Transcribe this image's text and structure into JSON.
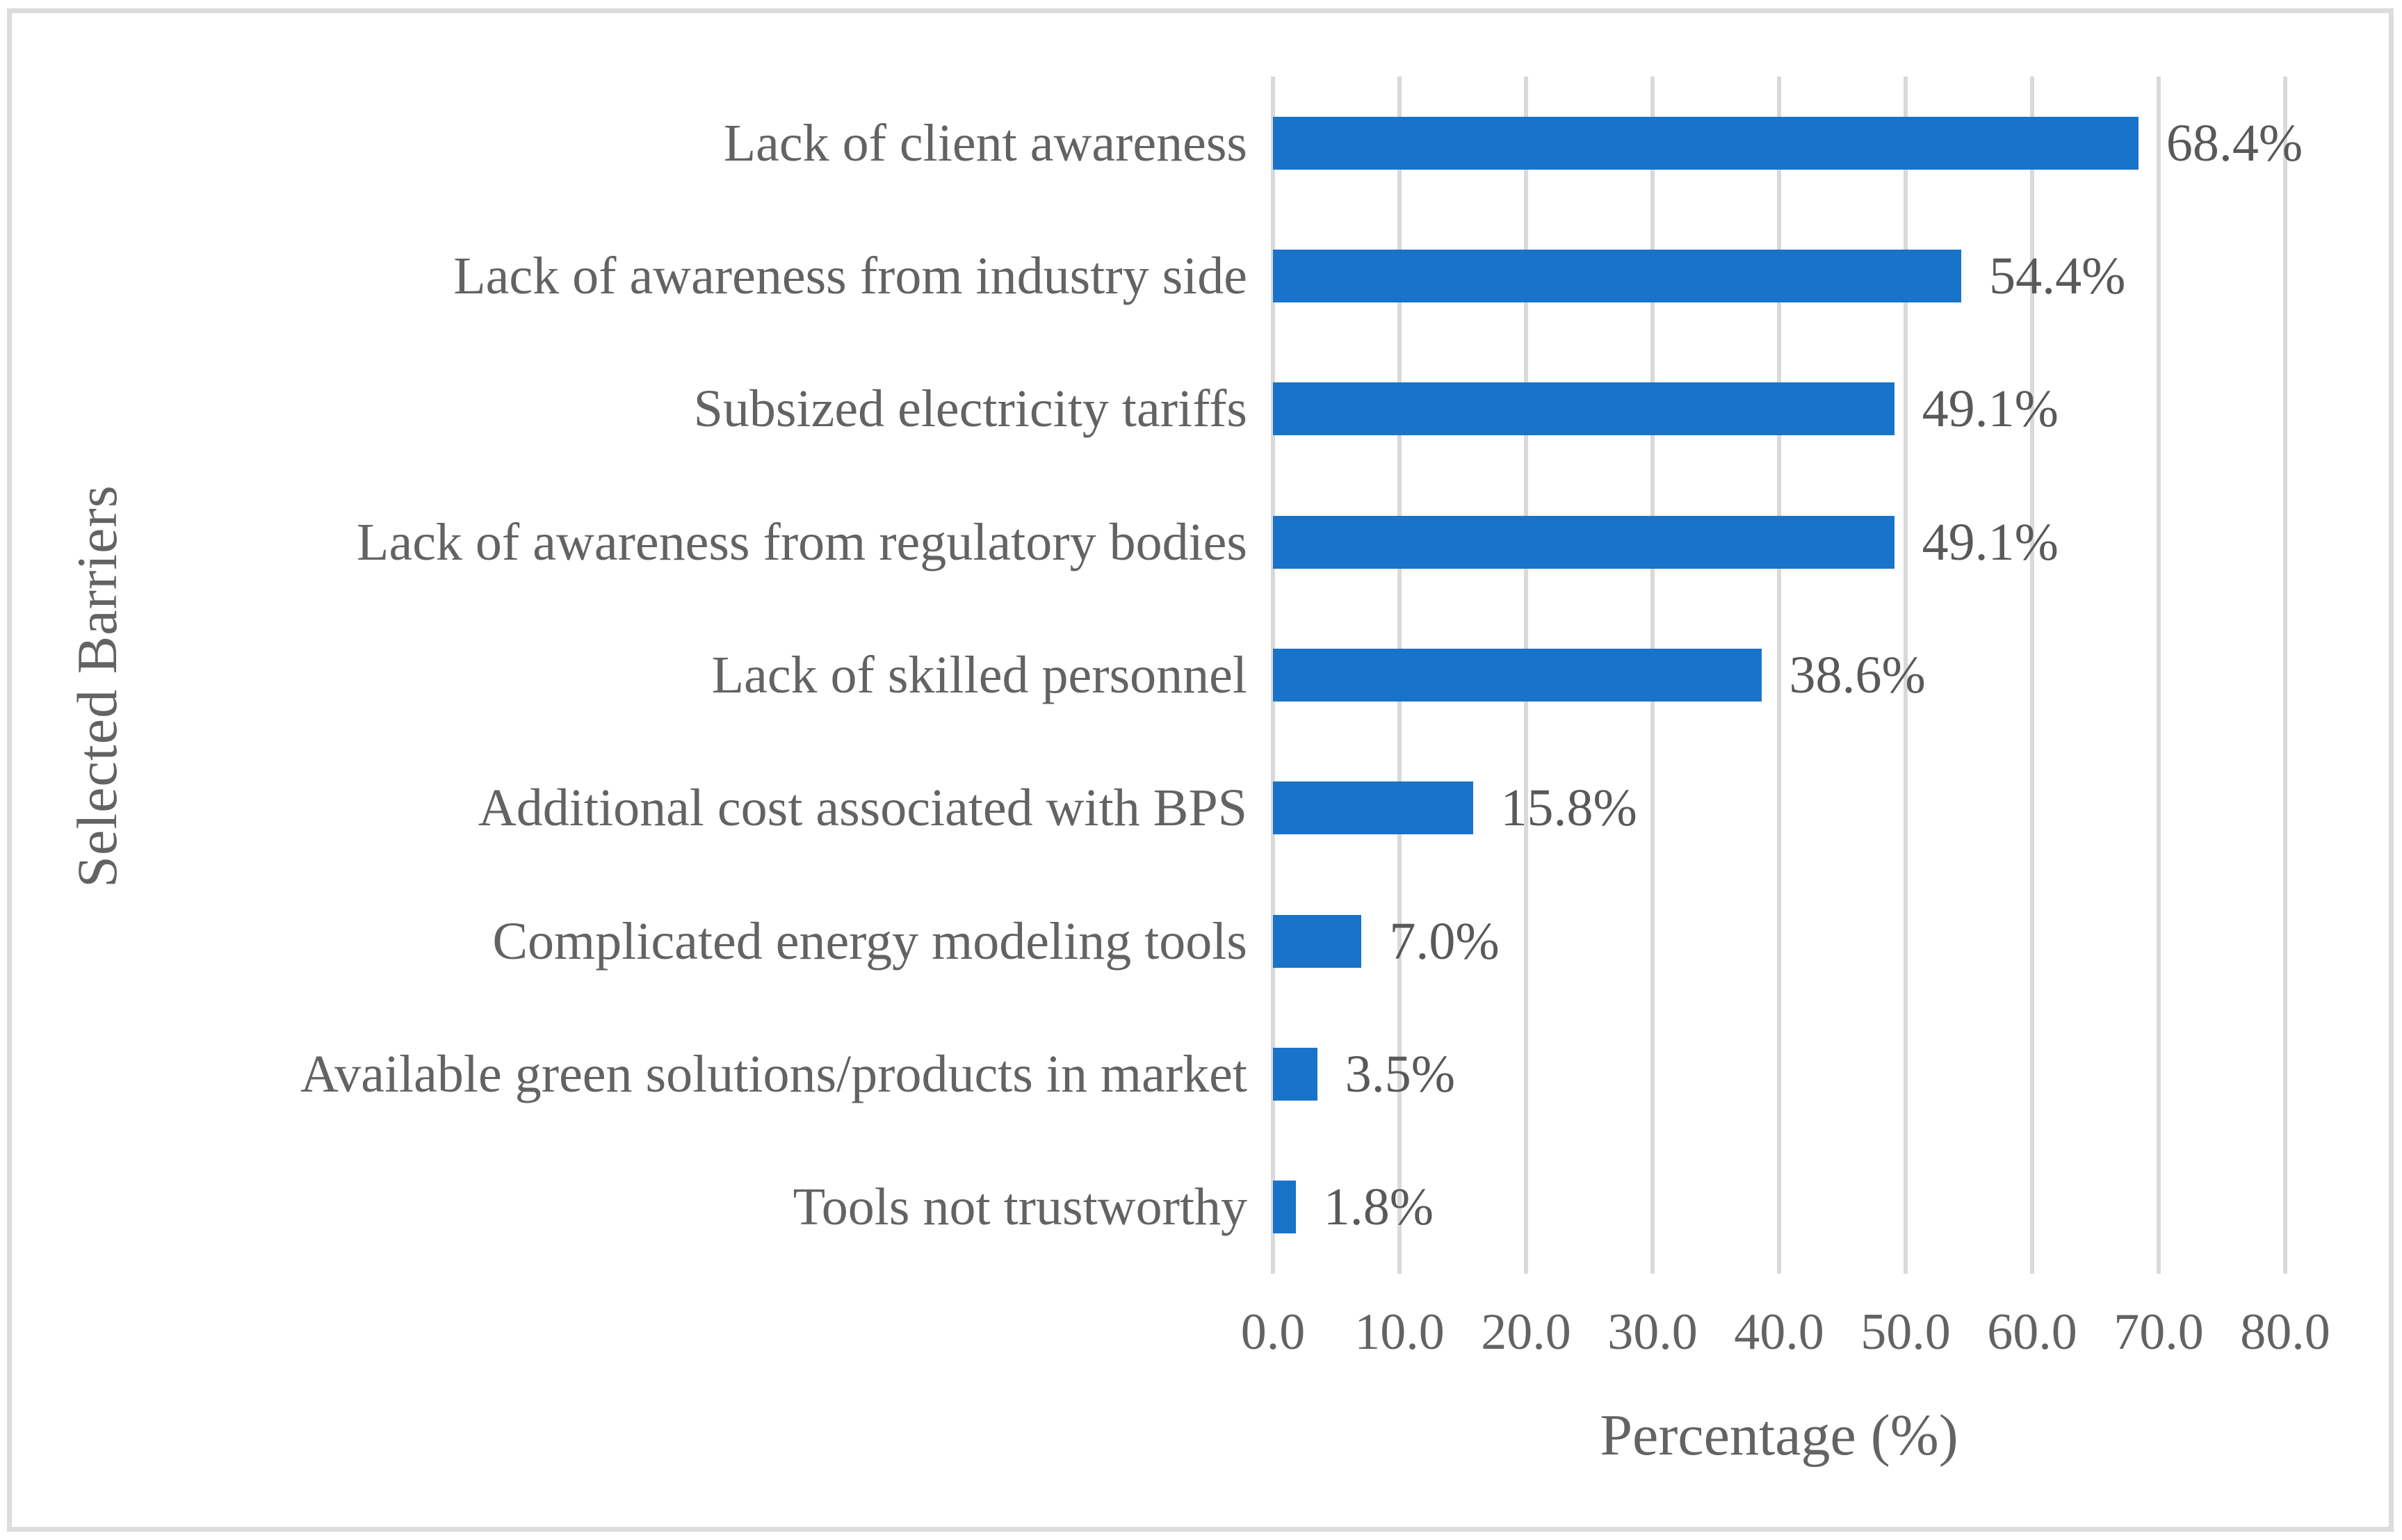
{
  "chart_data": {
    "type": "bar",
    "orientation": "horizontal",
    "title": "",
    "xlabel": "Percentage (%)",
    "ylabel": "Selected Barriers",
    "categories": [
      "Lack of client awareness",
      "Lack of awareness from industry side",
      "Subsized electricity tariffs",
      "Lack of awareness from regulatory bodies",
      "Lack of skilled personnel",
      "Additional cost associated with BPS",
      "Complicated energy modeling tools",
      "Available green solutions/products in market",
      "Tools not trustworthy"
    ],
    "values": [
      68.4,
      54.4,
      49.1,
      49.1,
      38.6,
      15.8,
      7.0,
      3.5,
      1.8
    ],
    "value_labels": [
      "68.4%",
      "54.4%",
      "49.1%",
      "49.1%",
      "38.6%",
      "15.8%",
      "7.0%",
      "3.5%",
      "1.8%"
    ],
    "xlim": [
      0,
      80
    ],
    "x_ticks": [
      0,
      10,
      20,
      30,
      40,
      50,
      60,
      70,
      80
    ],
    "x_tick_labels": [
      "0.0",
      "10.0",
      "20.0",
      "30.0",
      "40.0",
      "50.0",
      "60.0",
      "70.0",
      "80.0"
    ],
    "grid": "vertical-gridlines-on",
    "legend": "none",
    "colors": {
      "bar": "#1973c9",
      "gridline": "#d9d9d9",
      "text": "#636363",
      "frame_border": "#dcdcdc",
      "background": "#ffffff"
    }
  }
}
